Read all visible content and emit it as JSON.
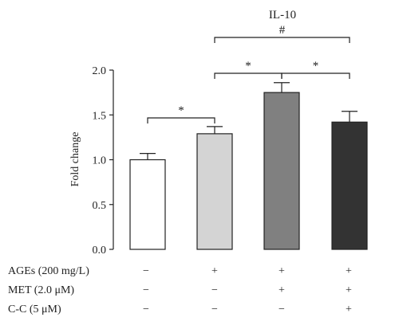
{
  "chart_data": {
    "type": "bar",
    "title": "IL-10",
    "ylabel": "Fold change",
    "xlabel": "",
    "ylim": [
      0,
      2.0
    ],
    "yticks": [
      "0.0",
      "0.5",
      "1.0",
      "1.5",
      "2.0"
    ],
    "grid": false,
    "bars": [
      {
        "value": 1.0,
        "error": 0.07,
        "color": "#ffffff"
      },
      {
        "value": 1.29,
        "error": 0.08,
        "color": "#d4d4d4"
      },
      {
        "value": 1.75,
        "error": 0.11,
        "color": "#808080"
      },
      {
        "value": 1.42,
        "error": 0.12,
        "color": "#333333"
      }
    ],
    "conditions": [
      {
        "label": "AGEs (200 mg/L)",
        "signs": [
          "−",
          "+",
          "+",
          "+"
        ]
      },
      {
        "label": "MET (2.0 μM)",
        "signs": [
          "−",
          "−",
          "+",
          "+"
        ]
      },
      {
        "label": "C-C (5 μM)",
        "signs": [
          "−",
          "−",
          "−",
          "+"
        ]
      }
    ],
    "significance": [
      {
        "from": 0,
        "to": 1,
        "label": "*"
      },
      {
        "from": 1,
        "to": 2,
        "label": "*"
      },
      {
        "from": 2,
        "to": 3,
        "label": "*"
      },
      {
        "from": 1,
        "to": 3,
        "label": "#"
      }
    ]
  }
}
